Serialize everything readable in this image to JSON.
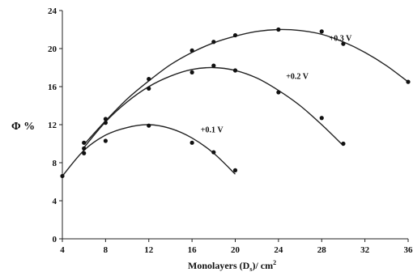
{
  "chart_data": {
    "type": "scatter",
    "xlabel": "Monolayers (D",
    "xlabel_sub": "s",
    "xlabel_tail": ")/ cm",
    "xlabel_sup": "2",
    "ylabel": "Φ  %",
    "xlim": [
      4,
      36
    ],
    "ylim": [
      0,
      24
    ],
    "xticks": [
      4,
      8,
      12,
      16,
      20,
      24,
      28,
      32,
      36
    ],
    "yticks": [
      0,
      4,
      8,
      12,
      16,
      20,
      24
    ],
    "grid": false,
    "series": [
      {
        "name": "+0.1 V",
        "points": [
          [
            4,
            6.6
          ],
          [
            6,
            9.0
          ],
          [
            8,
            10.3
          ],
          [
            12,
            11.9
          ],
          [
            16,
            10.1
          ],
          [
            18,
            9.1
          ],
          [
            20,
            7.2
          ]
        ],
        "curve": [
          [
            4,
            6.6
          ],
          [
            6,
            9.3
          ],
          [
            8,
            10.9
          ],
          [
            10,
            11.7
          ],
          [
            12,
            12.0
          ],
          [
            14,
            11.6
          ],
          [
            16,
            10.6
          ],
          [
            18,
            9.0
          ],
          [
            20,
            6.8
          ]
        ]
      },
      {
        "name": "+0.2 V",
        "points": [
          [
            6,
            9.5
          ],
          [
            8,
            12.2
          ],
          [
            12,
            15.8
          ],
          [
            16,
            17.5
          ],
          [
            18,
            18.2
          ],
          [
            20,
            17.7
          ],
          [
            24,
            15.4
          ],
          [
            28,
            12.7
          ],
          [
            30,
            10.0
          ]
        ],
        "curve": [
          [
            6,
            9.6
          ],
          [
            8,
            12.3
          ],
          [
            10,
            14.4
          ],
          [
            12,
            16.0
          ],
          [
            14,
            17.1
          ],
          [
            16,
            17.8
          ],
          [
            18,
            18.0
          ],
          [
            20,
            17.7
          ],
          [
            22,
            16.9
          ],
          [
            24,
            15.6
          ],
          [
            26,
            14.0
          ],
          [
            28,
            12.0
          ],
          [
            30,
            9.8
          ]
        ]
      },
      {
        "name": "+0.3 V",
        "points": [
          [
            6,
            10.1
          ],
          [
            8,
            12.6
          ],
          [
            12,
            16.8
          ],
          [
            16,
            19.8
          ],
          [
            18,
            20.7
          ],
          [
            20,
            21.4
          ],
          [
            24,
            22.0
          ],
          [
            28,
            21.8
          ],
          [
            30,
            20.5
          ],
          [
            36,
            16.5
          ]
        ],
        "curve": [
          [
            6,
            9.9
          ],
          [
            8,
            12.4
          ],
          [
            10,
            14.7
          ],
          [
            12,
            16.6
          ],
          [
            14,
            18.3
          ],
          [
            16,
            19.6
          ],
          [
            18,
            20.6
          ],
          [
            20,
            21.3
          ],
          [
            22,
            21.8
          ],
          [
            24,
            22.0
          ],
          [
            26,
            21.9
          ],
          [
            28,
            21.5
          ],
          [
            30,
            20.7
          ],
          [
            32,
            19.6
          ],
          [
            34,
            18.2
          ],
          [
            36,
            16.5
          ]
        ]
      }
    ]
  }
}
